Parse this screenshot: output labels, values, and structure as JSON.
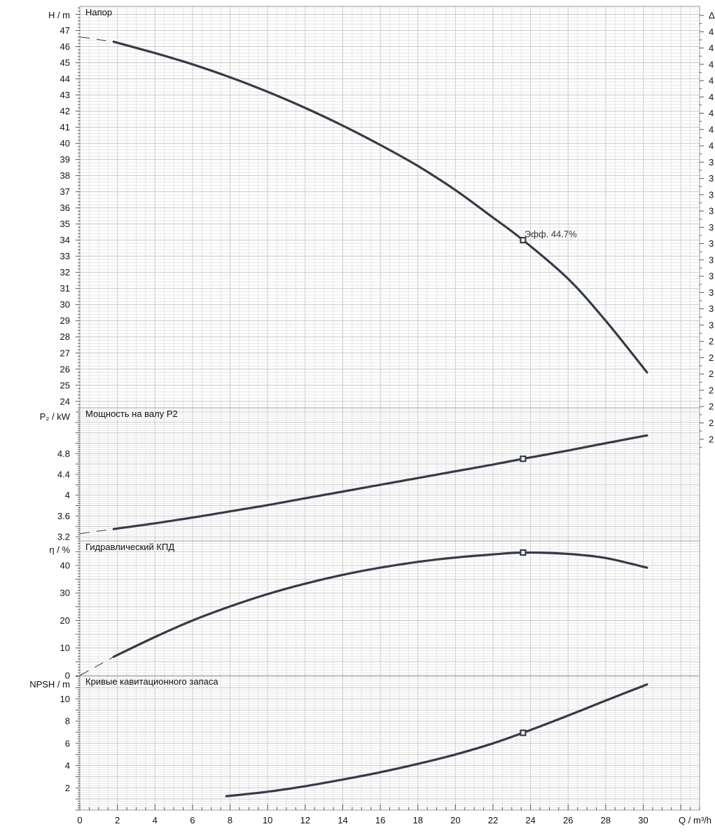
{
  "chart_data": {
    "type": "line",
    "x_axis": {
      "label": "Q / m³/h",
      "range": [
        0,
        33
      ],
      "ticks": [
        0,
        2,
        4,
        6,
        8,
        10,
        12,
        14,
        16,
        18,
        20,
        22,
        24,
        26,
        28,
        30
      ]
    },
    "duty_point": {
      "q": 23.6,
      "annotation": "Эфф.  44.7%"
    },
    "panels": [
      {
        "id": "head",
        "title": "Напор",
        "ylabel": "H / m",
        "ylim": [
          23.6,
          48.5
        ],
        "yticks": [
          24,
          25,
          26,
          27,
          28,
          29,
          30,
          31,
          32,
          33,
          34,
          35,
          36,
          37,
          38,
          39,
          40,
          41,
          42,
          43,
          44,
          45,
          46,
          47
        ],
        "series": {
          "x": [
            1.8,
            4,
            6,
            8,
            10,
            12,
            14,
            16,
            18,
            20,
            22,
            23.6,
            26,
            28,
            30.2
          ],
          "y": [
            46.3,
            45.6,
            44.9,
            44.1,
            43.2,
            42.2,
            41.1,
            39.9,
            38.6,
            37.1,
            35.4,
            34.0,
            31.6,
            29.0,
            25.8
          ]
        },
        "extrapolation": {
          "x": [
            0,
            1.8
          ],
          "y": [
            46.6,
            46.3
          ]
        },
        "marker_y": 34.0,
        "right_ticks": [
          "Δ",
          "4",
          "4",
          "4",
          "4",
          "4",
          "4",
          "4",
          "4",
          "3",
          "3",
          "3",
          "3",
          "3",
          "3",
          "3",
          "3",
          "3",
          "3",
          "3",
          "2",
          "2",
          "2",
          "2",
          "2",
          "2",
          "2"
        ]
      },
      {
        "id": "power",
        "title": "Мощность на валу P2",
        "ylabel": "P₂ / kW",
        "ylim": [
          3.12,
          5.68
        ],
        "yticks": [
          3.2,
          3.6,
          4,
          4.4,
          4.8
        ],
        "ytick_labels": [
          "3.2",
          "3.6",
          "4",
          "4.4",
          "4.8"
        ],
        "series": {
          "x": [
            1.8,
            4,
            6,
            8,
            10,
            12,
            14,
            16,
            18,
            20,
            22,
            23.6,
            26,
            28,
            30.2
          ],
          "y": [
            3.35,
            3.46,
            3.57,
            3.69,
            3.81,
            3.94,
            4.07,
            4.2,
            4.33,
            4.46,
            4.59,
            4.7,
            4.86,
            5.0,
            5.15
          ]
        },
        "extrapolation": {
          "x": [
            0,
            1.8
          ],
          "y": [
            3.26,
            3.35
          ]
        },
        "marker_y": 4.7
      },
      {
        "id": "efficiency",
        "title": "Гидравлический КПД",
        "ylabel": "η / %",
        "ylim": [
          0,
          48.9
        ],
        "yticks": [
          0,
          10,
          20,
          30,
          40
        ],
        "series": {
          "x": [
            1.8,
            4,
            6,
            8,
            10,
            12,
            14,
            16,
            18,
            20,
            22,
            23.6,
            26,
            28,
            30.2
          ],
          "y": [
            6.8,
            14.0,
            20.0,
            25.1,
            29.6,
            33.4,
            36.6,
            39.2,
            41.3,
            42.9,
            44.0,
            44.7,
            44.2,
            42.7,
            39.2
          ]
        },
        "extrapolation": {
          "x": [
            0,
            1.8
          ],
          "y": [
            0,
            6.8
          ]
        },
        "marker_y": 44.7
      },
      {
        "id": "npsh",
        "title": "Кривые кавитационного запаса",
        "ylabel": "NPSH / m",
        "ylim": [
          0,
          12.1
        ],
        "yticks": [
          2,
          4,
          6,
          8,
          10
        ],
        "series": {
          "x": [
            7.8,
            10,
            12,
            14,
            16,
            18,
            20,
            22,
            23.6,
            26,
            28,
            30.2
          ],
          "y": [
            1.25,
            1.65,
            2.15,
            2.75,
            3.4,
            4.15,
            5.0,
            6.0,
            6.95,
            8.5,
            9.85,
            11.3
          ]
        },
        "marker_y": 6.95
      }
    ]
  }
}
